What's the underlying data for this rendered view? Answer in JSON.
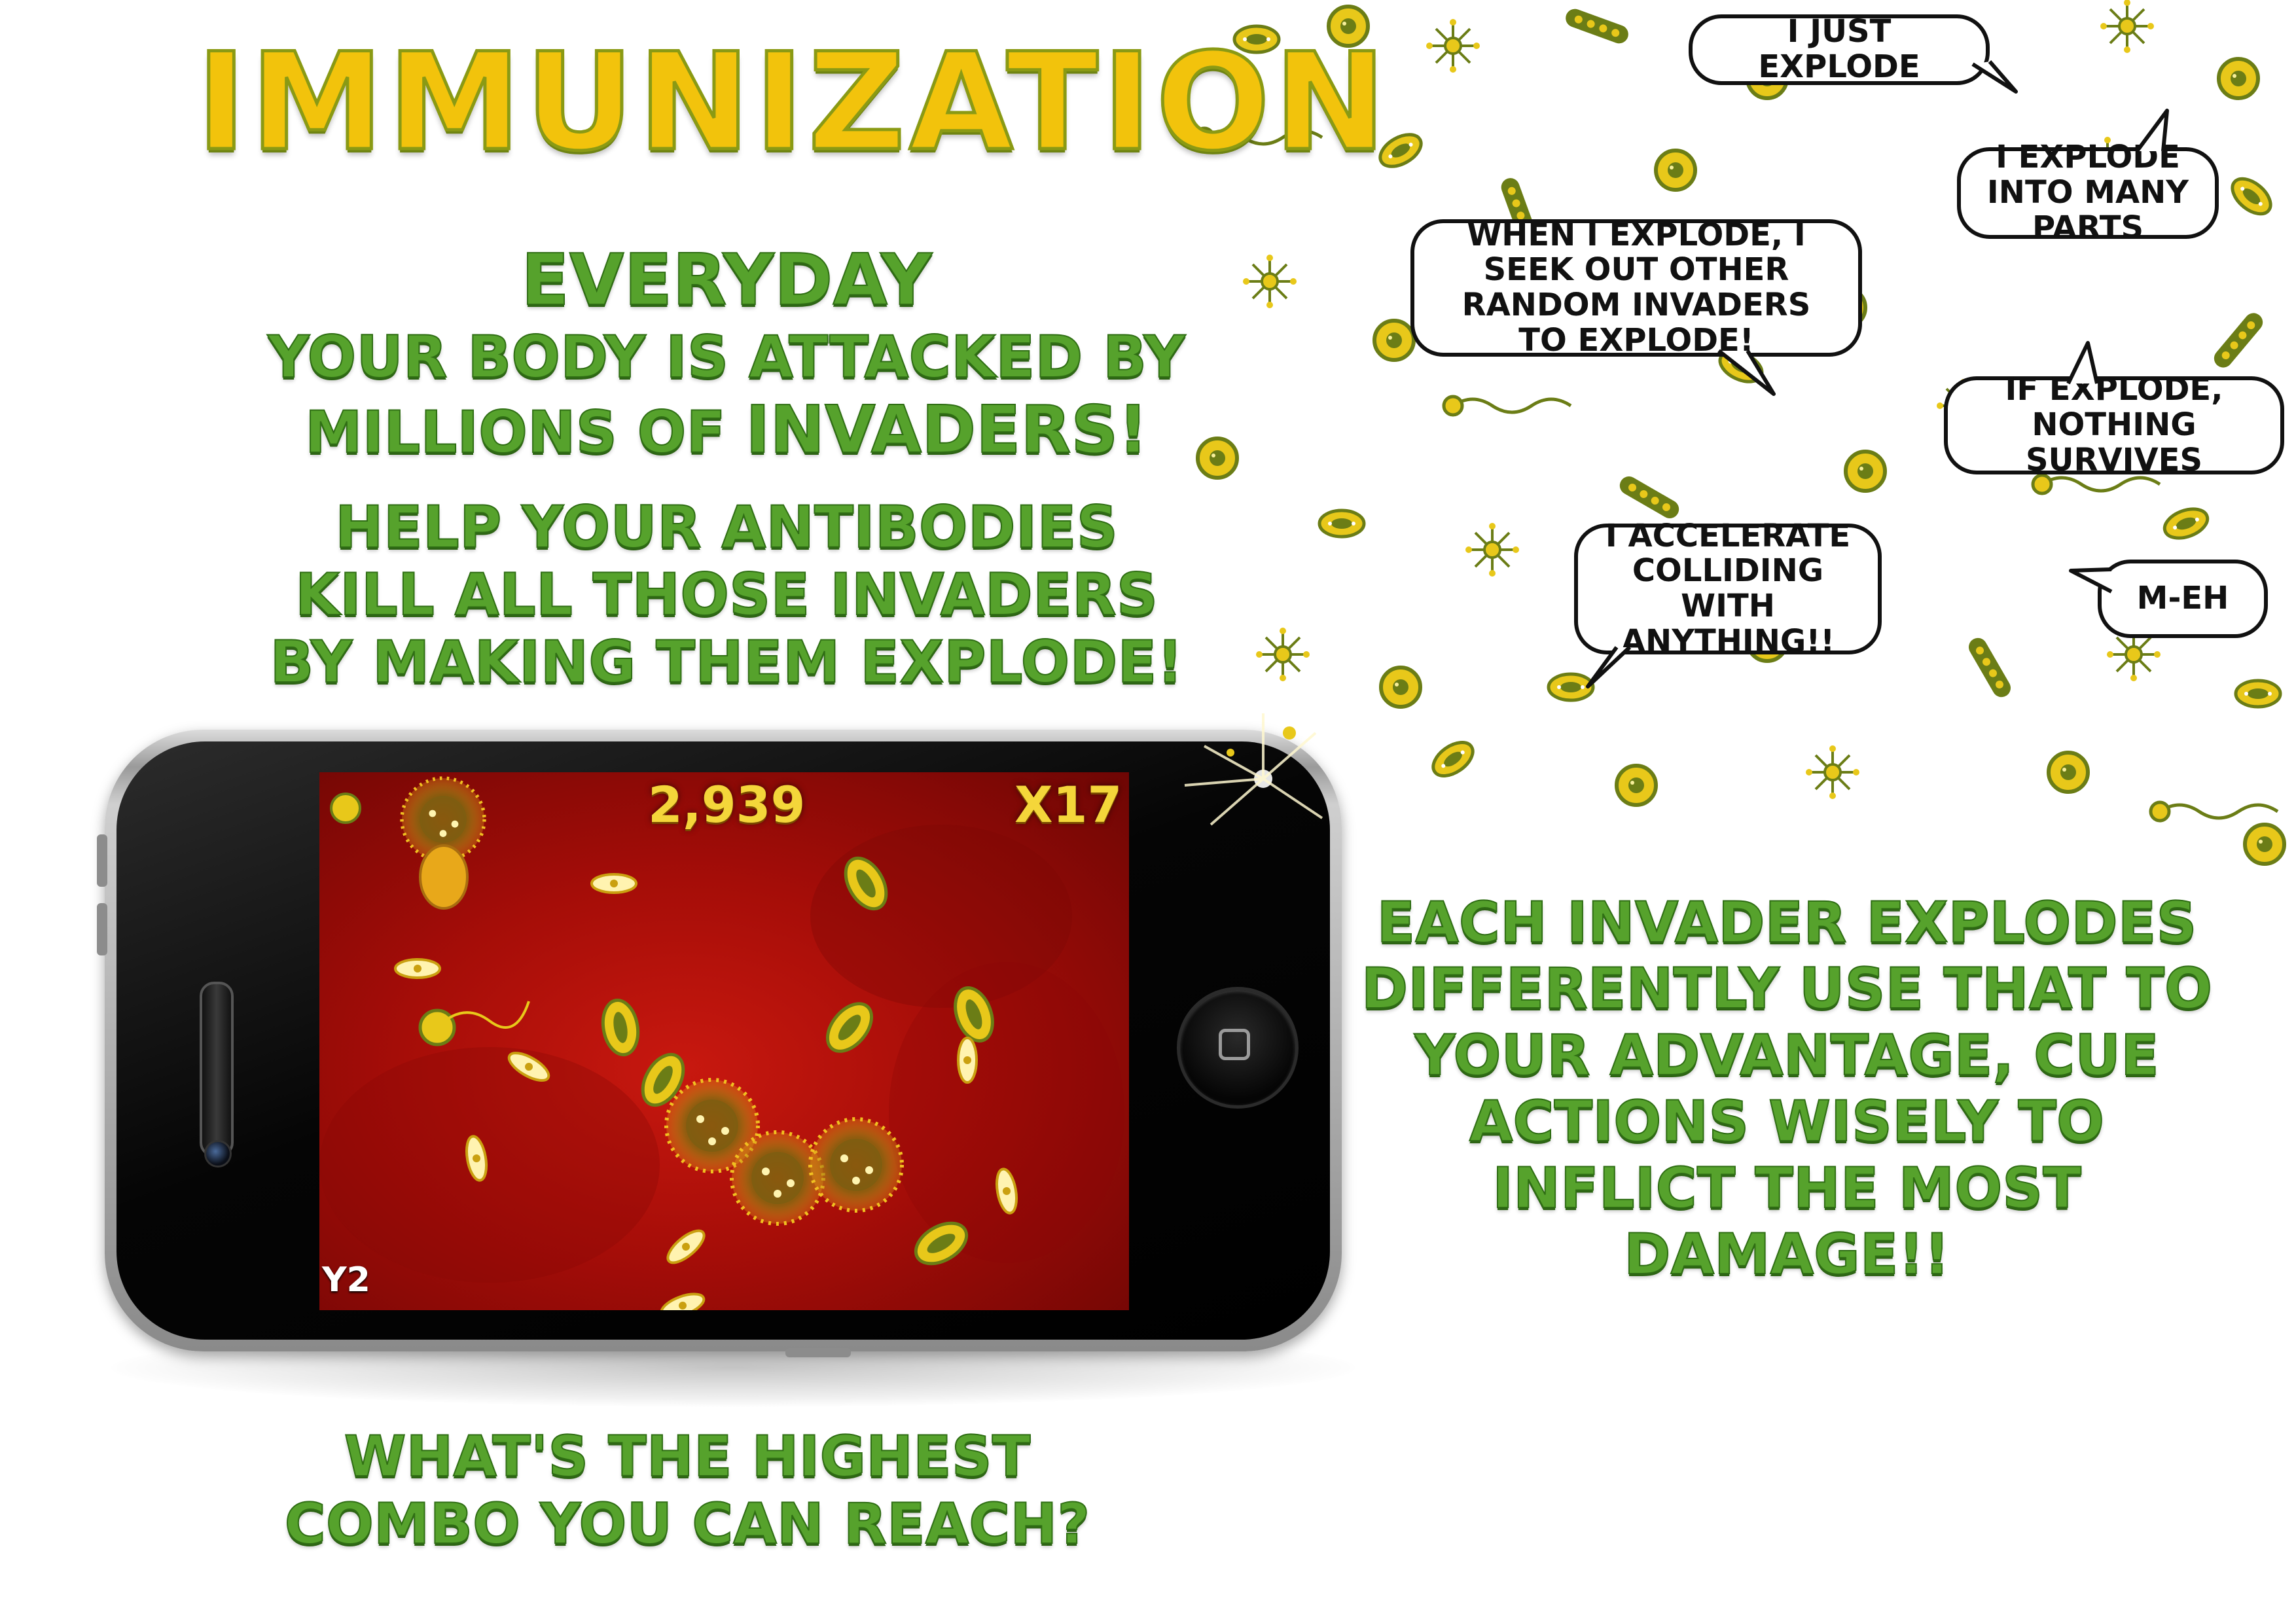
{
  "title": "IMMUNIZATION",
  "intro": {
    "headline": "EVERYDAY",
    "line1": "YOUR BODY IS ATTACKED BY",
    "line2_prefix": "MILLIONS OF ",
    "line2_emphasis": "INVADERS!",
    "help_line1": "HELP YOUR ANTIBODIES",
    "help_line2": "KILL ALL THOSE INVADERS",
    "help_line3": "BY MAKING THEM EXPLODE!"
  },
  "bubbles": {
    "just_explode": "I JUST EXPLODE",
    "many_parts": "I EXPLODE INTO MANY PARTS",
    "seek_out": "WHEN I EXPLODE, I SEEK OUT OTHER RANDOM INVADERS TO EXPLODE!",
    "nothing_survives": "IF EXPLODE, NOTHING SURVIVES",
    "accelerate": "I ACCELERATE COLLIDING WITH ANYTHING!!",
    "meh": "M-EH"
  },
  "game": {
    "score": "2,939",
    "multiplier": "X17",
    "level": "Y2"
  },
  "tips": {
    "each_invader": "EACH INVADER EXPLODES DIFFERENTLY USE THAT TO YOUR ADVANTAGE, CUE ACTIONS WISELY TO INFLICT THE MOST DAMAGE!!",
    "highest_combo_line1": "WHAT'S THE HIGHEST",
    "highest_combo_line2": "COMBO YOU CAN REACH?"
  },
  "colors": {
    "title_yellow": "#f2c30c",
    "copy_green": "#56a22c",
    "microbe_yellow": "#e8c81a",
    "microbe_olive": "#6b7d16",
    "blood_red": "#b5110a"
  }
}
